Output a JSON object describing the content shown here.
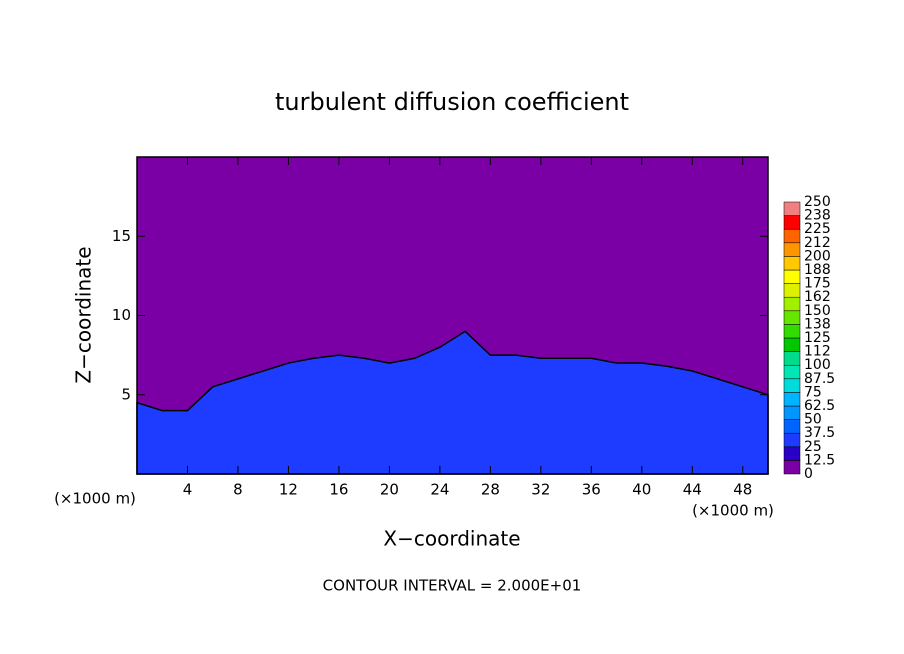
{
  "chart_data": {
    "type": "contour",
    "title": "turbulent diffusion coefficient",
    "xlabel": "X−coordinate",
    "ylabel": "Z−coordinate",
    "x_unit": "(×1000 m)",
    "note": "CONTOUR INTERVAL = 2.000E+01",
    "xlim": [
      0,
      50
    ],
    "xticks": [
      4,
      8,
      12,
      16,
      20,
      24,
      28,
      32,
      36,
      40,
      44,
      48
    ],
    "ylim": [
      0,
      20
    ],
    "yticks": [
      5,
      10,
      15
    ],
    "background_color": "#7a00a6",
    "layer_x": [
      0,
      2,
      4,
      6,
      8,
      10,
      12,
      14,
      16,
      18,
      20,
      22,
      24,
      26,
      28,
      30,
      32,
      34,
      36,
      38,
      40,
      42,
      44,
      46,
      48,
      50
    ],
    "layer_top": [
      4.5,
      4,
      4,
      5.5,
      6,
      6.5,
      7,
      7.3,
      7.5,
      7.3,
      7,
      7.3,
      8,
      9,
      7.5,
      7.5,
      7.3,
      7.3,
      7.3,
      7,
      7,
      6.8,
      6.5,
      6,
      5.5,
      5
    ],
    "levels": [
      0,
      12.5,
      25,
      37.5,
      50,
      62.5,
      75,
      87.5,
      100,
      112,
      125,
      138,
      150,
      162,
      175,
      188,
      200,
      212,
      225,
      238,
      250
    ],
    "level_colors": [
      "#7a00a6",
      "#2800c8",
      "#1e3cff",
      "#0064ff",
      "#0096ff",
      "#00b4ff",
      "#00dcdc",
      "#00e6b4",
      "#00dc8c",
      "#00c800",
      "#32dc00",
      "#64e600",
      "#a0f000",
      "#dcf000",
      "#ffff00",
      "#ffc800",
      "#ff9600",
      "#ff6400",
      "#ff0000",
      "#f08080"
    ]
  }
}
